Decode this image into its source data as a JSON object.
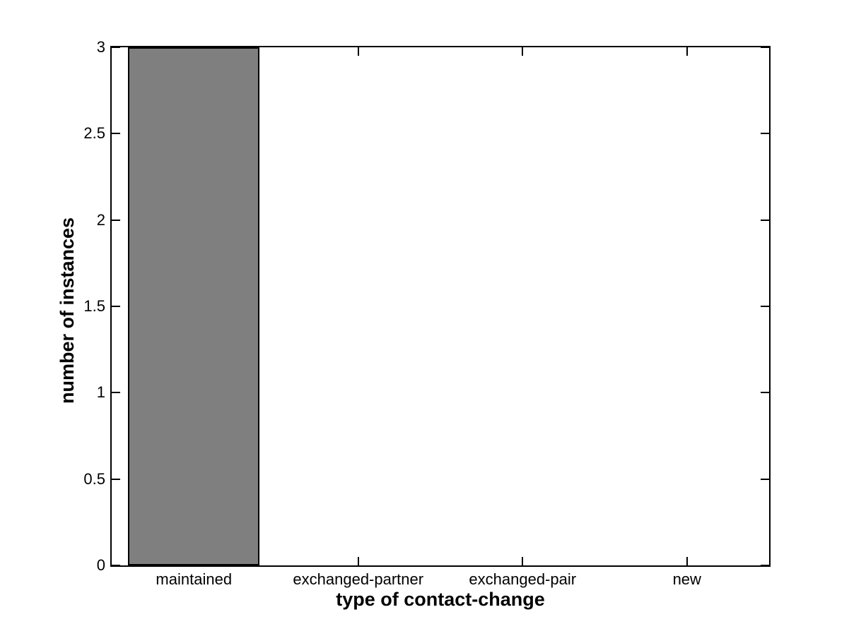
{
  "chart_data": {
    "type": "bar",
    "categories": [
      "maintained",
      "exchanged-partner",
      "exchanged-pair",
      "new"
    ],
    "values": [
      3,
      0,
      0,
      0
    ],
    "xlabel": "type of contact-change",
    "ylabel": "number of instances",
    "ylim": [
      0,
      3
    ],
    "yticks": [
      0,
      0.5,
      1,
      1.5,
      2,
      2.5,
      3
    ],
    "ytick_labels": [
      "0",
      "0.5",
      "1",
      "1.5",
      "2",
      "2.5",
      "3"
    ],
    "bar_width_fraction": 0.8,
    "grid": false,
    "legend": "none",
    "box": true,
    "tick_direction": "in",
    "colors": {
      "bar_fill": "#7F7F7F",
      "bar_edge": "#000000",
      "axis": "#000000",
      "text": "#000000",
      "background": "#FFFFFF"
    }
  }
}
